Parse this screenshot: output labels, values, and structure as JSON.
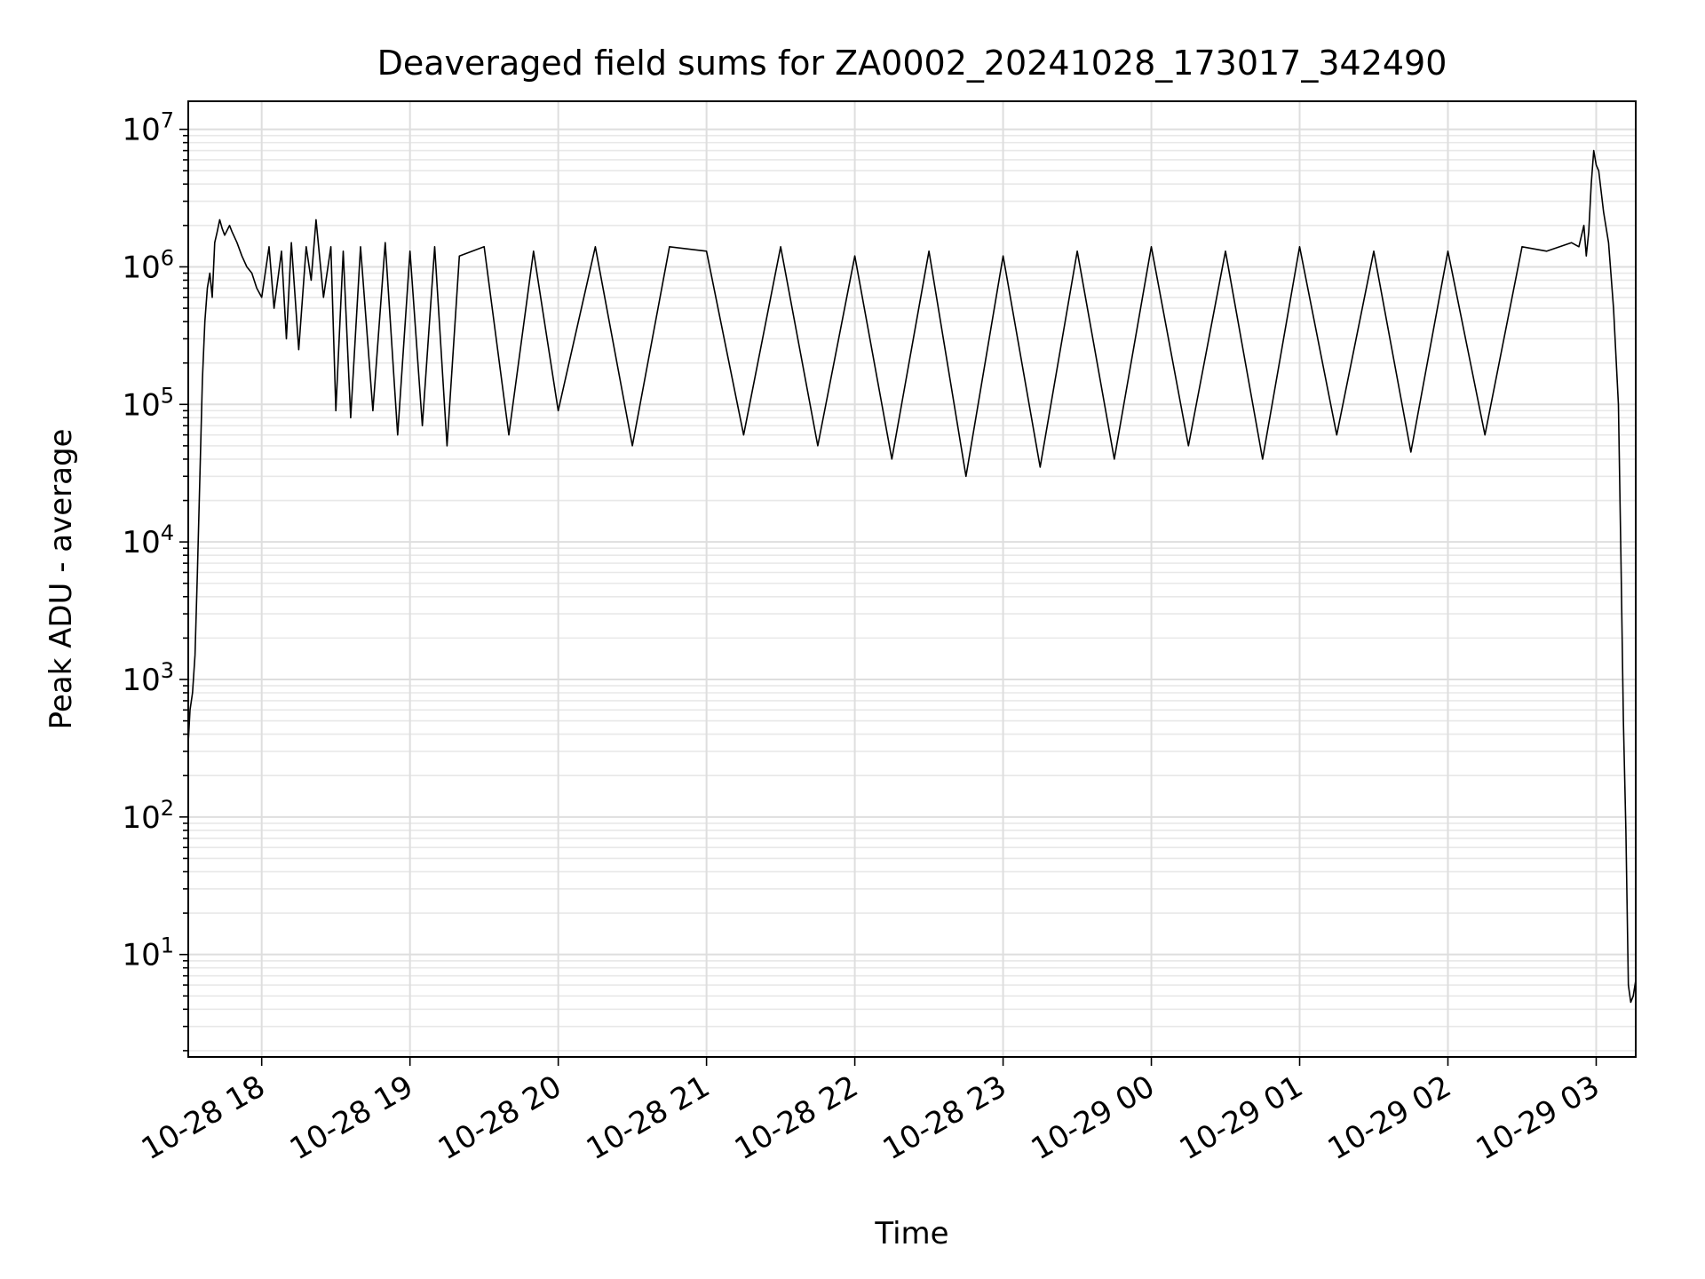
{
  "chart_data": {
    "type": "line",
    "title": "Deaveraged field sums for ZA0002_20241028_173017_342490",
    "xlabel": "Time",
    "ylabel": "Peak ADU - average",
    "y_scale": "log",
    "ylim": [
      1.8,
      16000000
    ],
    "xlim": [
      "2024-10-28T17:30:17",
      "2024-10-29T03:16:00"
    ],
    "grid": true,
    "y_tick_exponents": [
      "1",
      "2",
      "3",
      "4",
      "5",
      "6",
      "7"
    ],
    "y_tick_base": "10",
    "x_ticks": [
      {
        "label": "10-28 18",
        "t": "2024-10-28T18:00:00"
      },
      {
        "label": "10-28 19",
        "t": "2024-10-28T19:00:00"
      },
      {
        "label": "10-28 20",
        "t": "2024-10-28T20:00:00"
      },
      {
        "label": "10-28 21",
        "t": "2024-10-28T21:00:00"
      },
      {
        "label": "10-28 22",
        "t": "2024-10-28T22:00:00"
      },
      {
        "label": "10-28 23",
        "t": "2024-10-28T23:00:00"
      },
      {
        "label": "10-29 00",
        "t": "2024-10-29T00:00:00"
      },
      {
        "label": "10-29 01",
        "t": "2024-10-29T01:00:00"
      },
      {
        "label": "10-29 02",
        "t": "2024-10-29T02:00:00"
      },
      {
        "label": "10-29 03",
        "t": "2024-10-29T03:00:00"
      }
    ],
    "series": [
      {
        "color": "#000000",
        "x": [
          "2024-10-28T17:30:17",
          "2024-10-28T17:31:00",
          "2024-10-28T17:32:00",
          "2024-10-28T17:33:00",
          "2024-10-28T17:34:00",
          "2024-10-28T17:35:00",
          "2024-10-28T17:36:00",
          "2024-10-28T17:37:00",
          "2024-10-28T17:38:00",
          "2024-10-28T17:39:00",
          "2024-10-28T17:40:00",
          "2024-10-28T17:41:00",
          "2024-10-28T17:42:00",
          "2024-10-28T17:43:00",
          "2024-10-28T17:44:00",
          "2024-10-28T17:45:00",
          "2024-10-28T17:47:00",
          "2024-10-28T17:48:00",
          "2024-10-28T17:50:00",
          "2024-10-28T17:52:00",
          "2024-10-28T17:54:00",
          "2024-10-28T17:56:00",
          "2024-10-28T17:58:00",
          "2024-10-28T18:00:00",
          "2024-10-28T18:03:00",
          "2024-10-28T18:05:00",
          "2024-10-28T18:08:00",
          "2024-10-28T18:10:00",
          "2024-10-28T18:12:00",
          "2024-10-28T18:15:00",
          "2024-10-28T18:18:00",
          "2024-10-28T18:20:00",
          "2024-10-28T18:22:00",
          "2024-10-28T18:25:00",
          "2024-10-28T18:28:00",
          "2024-10-28T18:30:00",
          "2024-10-28T18:33:00",
          "2024-10-28T18:36:00",
          "2024-10-28T18:40:00",
          "2024-10-28T18:45:00",
          "2024-10-28T18:50:00",
          "2024-10-28T18:55:00",
          "2024-10-28T19:00:00",
          "2024-10-28T19:05:00",
          "2024-10-28T19:10:00",
          "2024-10-28T19:15:00",
          "2024-10-28T19:20:00",
          "2024-10-28T19:30:00",
          "2024-10-28T19:40:00",
          "2024-10-28T19:50:00",
          "2024-10-28T20:00:00",
          "2024-10-28T20:15:00",
          "2024-10-28T20:30:00",
          "2024-10-28T20:45:00",
          "2024-10-28T21:00:00",
          "2024-10-28T21:15:00",
          "2024-10-28T21:30:00",
          "2024-10-28T21:45:00",
          "2024-10-28T22:00:00",
          "2024-10-28T22:15:00",
          "2024-10-28T22:30:00",
          "2024-10-28T22:45:00",
          "2024-10-28T23:00:00",
          "2024-10-28T23:15:00",
          "2024-10-28T23:30:00",
          "2024-10-28T23:45:00",
          "2024-10-29T00:00:00",
          "2024-10-29T00:15:00",
          "2024-10-29T00:30:00",
          "2024-10-29T00:45:00",
          "2024-10-29T01:00:00",
          "2024-10-29T01:15:00",
          "2024-10-29T01:30:00",
          "2024-10-29T01:45:00",
          "2024-10-29T02:00:00",
          "2024-10-29T02:15:00",
          "2024-10-29T02:30:00",
          "2024-10-29T02:40:00",
          "2024-10-29T02:50:00",
          "2024-10-29T02:53:00",
          "2024-10-29T02:55:00",
          "2024-10-29T02:56:00",
          "2024-10-29T02:57:00",
          "2024-10-29T02:58:00",
          "2024-10-29T02:59:00",
          "2024-10-29T03:00:00",
          "2024-10-29T03:01:00",
          "2024-10-29T03:03:00",
          "2024-10-29T03:05:00",
          "2024-10-29T03:07:00",
          "2024-10-29T03:09:00",
          "2024-10-29T03:10:00",
          "2024-10-29T03:11:00",
          "2024-10-29T03:12:00",
          "2024-10-29T03:13:00",
          "2024-10-29T03:14:00",
          "2024-10-29T03:15:00",
          "2024-10-29T03:16:00"
        ],
        "y": [
          350,
          600,
          800,
          1500,
          6000,
          30000,
          150000,
          400000,
          700000,
          900000,
          600000,
          1500000,
          1800000,
          2200000,
          1900000,
          1700000,
          2000000,
          1800000,
          1500000,
          1200000,
          1000000,
          900000,
          700000,
          600000,
          1400000,
          500000,
          1300000,
          300000,
          1500000,
          250000,
          1400000,
          800000,
          2200000,
          600000,
          1400000,
          90000,
          1300000,
          80000,
          1400000,
          90000,
          1500000,
          60000,
          1300000,
          70000,
          1400000,
          50000,
          1200000,
          1400000,
          60000,
          1300000,
          90000,
          1400000,
          50000,
          1400000,
          1300000,
          60000,
          1400000,
          50000,
          1200000,
          40000,
          1300000,
          30000,
          1200000,
          35000,
          1300000,
          40000,
          1400000,
          50000,
          1300000,
          40000,
          1400000,
          60000,
          1300000,
          45000,
          1300000,
          60000,
          1400000,
          1300000,
          1500000,
          1400000,
          2000000,
          1200000,
          1800000,
          4000000,
          7000000,
          5500000,
          5000000,
          2500000,
          1500000,
          500000,
          100000,
          8000,
          500,
          80,
          6,
          4.5,
          5,
          6.5
        ]
      }
    ]
  }
}
